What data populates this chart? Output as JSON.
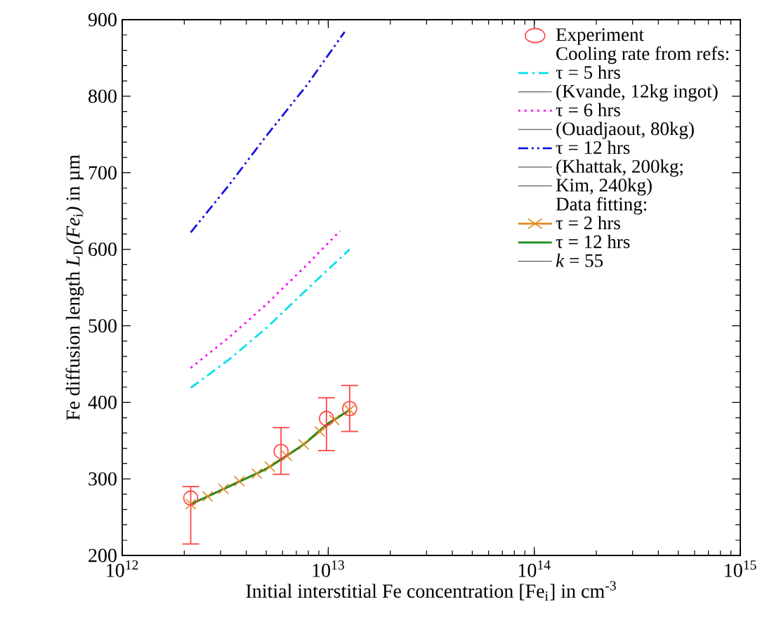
{
  "chart_data": {
    "type": "line",
    "xlabel": "Initial interstitial Fe concentration [Fe$_{i}$] in cm$^{-3}$",
    "ylabel": "Fe diffusion length *L*$_{D}$*(Fe*$_{i}$*)* in µm",
    "log": "x",
    "xlim": [
      1000000000000.0,
      1000000000000000.0
    ],
    "xticks": [
      {
        "value": 1000000000000.0,
        "label": "10$^{12}$"
      },
      {
        "value": 10000000000000.0,
        "label": "10$^{13}$"
      },
      {
        "value": 100000000000000.0,
        "label": "10$^{14}$"
      },
      {
        "value": 1000000000000000.0,
        "label": "10$^{15}$"
      }
    ],
    "ylim": [
      200,
      900
    ],
    "yticks": [
      200,
      300,
      400,
      500,
      600,
      700,
      800,
      900
    ],
    "grid": false,
    "legend": "top right",
    "annotations": [
      "Cooling rate from refs:",
      "(Kvande, 12kg ingot)",
      "(Ouadjaout, 80kg)",
      "(Khattak, 200kg;",
      "Kim, 240kg)",
      "Data fitting:",
      "*k* = 55"
    ],
    "series": [
      {
        "name": "Experiment",
        "type": "scatter",
        "color": "#ff4444",
        "marker": "circle",
        "x": [
          2150000000000.0,
          5900000000000.0,
          9800000000000.0,
          12700000000000.0
        ],
        "values": [
          275,
          336,
          379,
          392
        ],
        "errors": [
          [
            215,
            290
          ],
          [
            306,
            367
          ],
          [
            337,
            406
          ],
          [
            362,
            422
          ]
        ]
      },
      {
        "name": "τ = 5 hrs",
        "color": "#00e0ee",
        "line_style": "dashdot",
        "marker": "none",
        "x": [
          2150000000000.0,
          3300000000000.0,
          5000000000000.0,
          7900000000000.0,
          12700000000000.0
        ],
        "values": [
          419,
          456,
          497,
          548,
          600
        ]
      },
      {
        "name": "τ = 6 hrs",
        "color": "#ff00ff",
        "line_style": "dotted",
        "marker": "none",
        "x": [
          2150000000000.0,
          3300000000000.0,
          5000000000000.0,
          7900000000000.0,
          11400000000000.0
        ],
        "values": [
          445,
          485,
          528,
          580,
          624
        ]
      },
      {
        "name": "τ = 12 hrs",
        "color": "#1515e0",
        "line_style": "dashdotdot",
        "marker": "none",
        "x": [
          2150000000000.0,
          3300000000000.0,
          5000000000000.0,
          7900000000000.0,
          12000000000000.0
        ],
        "values": [
          622,
          684,
          748,
          815,
          884
        ]
      },
      {
        "name": "τ = 2 hrs",
        "color": "#e08a20",
        "line_style": "solid",
        "marker": "cross",
        "x": [
          2150000000000.0,
          2600000000000.0,
          3100000000000.0,
          3700000000000.0,
          4500000000000.0,
          5200000000000.0,
          6300000000000.0,
          7600000000000.0,
          9100000000000.0,
          10700000000000.0,
          12700000000000.0
        ],
        "values": [
          267,
          277,
          287,
          297,
          307,
          316,
          330,
          345,
          362,
          377,
          390
        ]
      },
      {
        "name": "τ = 12 hrs",
        "color": "#1a8a1a",
        "line_style": "solid",
        "marker": "none",
        "x": [
          2150000000000.0,
          3300000000000.0,
          5000000000000.0,
          7600000000000.0,
          9900000000000.0,
          12700000000000.0
        ],
        "values": [
          267,
          290,
          313,
          345,
          372,
          390
        ]
      }
    ]
  }
}
